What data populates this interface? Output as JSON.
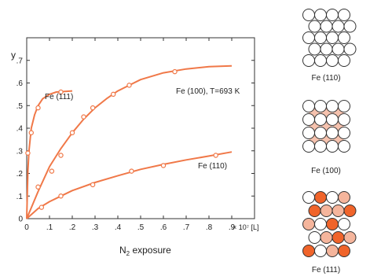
{
  "chart_data": {
    "type": "scatter",
    "ylabel": "y",
    "xlabel_prefix": "N",
    "xlabel_sub": "2",
    "xlabel_suffix": " exposure",
    "xunit": "× 10⁷ [L]",
    "xlim": [
      0,
      1.0
    ],
    "ylim": [
      0,
      0.8
    ],
    "x_ticks": [
      0,
      0.1,
      0.2,
      0.3,
      0.4,
      0.5,
      0.6,
      0.7,
      0.8,
      0.9
    ],
    "x_tick_labels": [
      "0",
      ".1",
      ".2",
      ".3",
      ".4",
      ".5",
      ".6",
      ".7",
      ".8",
      ".9"
    ],
    "y_ticks": [
      0,
      0.1,
      0.2,
      0.3,
      0.4,
      0.5,
      0.6,
      0.7
    ],
    "y_tick_labels": [
      "0",
      ".1",
      ".2",
      ".3",
      ".4",
      ".5",
      ".6",
      ".7"
    ],
    "grid": false,
    "series": [
      {
        "name": "Fe (111)",
        "color": "#f07848",
        "points": [
          [
            0.005,
            0.29
          ],
          [
            0.02,
            0.38
          ],
          [
            0.05,
            0.49
          ],
          [
            0.15,
            0.56
          ]
        ],
        "curve": [
          [
            0,
            0
          ],
          [
            0.005,
            0.21
          ],
          [
            0.01,
            0.3
          ],
          [
            0.02,
            0.4
          ],
          [
            0.035,
            0.46
          ],
          [
            0.05,
            0.5
          ],
          [
            0.07,
            0.53
          ],
          [
            0.1,
            0.55
          ],
          [
            0.13,
            0.56
          ],
          [
            0.2,
            0.565
          ]
        ]
      },
      {
        "name": "Fe (100), T=693 K",
        "color": "#f07848",
        "points": [
          [
            0.05,
            0.14
          ],
          [
            0.11,
            0.21
          ],
          [
            0.15,
            0.28
          ],
          [
            0.2,
            0.38
          ],
          [
            0.25,
            0.45
          ],
          [
            0.29,
            0.49
          ],
          [
            0.38,
            0.55
          ],
          [
            0.45,
            0.59
          ],
          [
            0.65,
            0.65
          ]
        ],
        "curve": [
          [
            0,
            0
          ],
          [
            0.05,
            0.12
          ],
          [
            0.1,
            0.23
          ],
          [
            0.15,
            0.31
          ],
          [
            0.2,
            0.38
          ],
          [
            0.25,
            0.44
          ],
          [
            0.3,
            0.49
          ],
          [
            0.35,
            0.53
          ],
          [
            0.4,
            0.565
          ],
          [
            0.45,
            0.59
          ],
          [
            0.5,
            0.615
          ],
          [
            0.6,
            0.645
          ],
          [
            0.7,
            0.662
          ],
          [
            0.8,
            0.672
          ],
          [
            0.9,
            0.676
          ]
        ]
      },
      {
        "name": "Fe (110)",
        "color": "#f07848",
        "points": [
          [
            0.065,
            0.05
          ],
          [
            0.15,
            0.1
          ],
          [
            0.29,
            0.15
          ],
          [
            0.46,
            0.21
          ],
          [
            0.6,
            0.235
          ],
          [
            0.83,
            0.28
          ]
        ],
        "curve": [
          [
            0,
            0
          ],
          [
            0.05,
            0.045
          ],
          [
            0.1,
            0.075
          ],
          [
            0.15,
            0.1
          ],
          [
            0.2,
            0.124
          ],
          [
            0.3,
            0.16
          ],
          [
            0.4,
            0.19
          ],
          [
            0.5,
            0.218
          ],
          [
            0.6,
            0.24
          ],
          [
            0.7,
            0.26
          ],
          [
            0.8,
            0.277
          ],
          [
            0.9,
            0.295
          ]
        ]
      }
    ]
  },
  "crystal_panels": [
    {
      "caption": "Fe (110)",
      "rows": [
        "wwww",
        "wwww",
        "wwww",
        "wwww",
        "wwww"
      ]
    },
    {
      "caption": "Fe (100)",
      "rows": [
        "wwww",
        "wwww",
        "wwww",
        "wwww"
      ],
      "hollows": "#f5c2ae"
    },
    {
      "caption": "Fe (111)",
      "rows": [
        "wdwl",
        "dlld",
        "lwdw",
        "wldl",
        "dwld"
      ],
      "colors": {
        "w": "#ffffff",
        "l": "#f5b59c",
        "d": "#f0642a"
      }
    }
  ]
}
